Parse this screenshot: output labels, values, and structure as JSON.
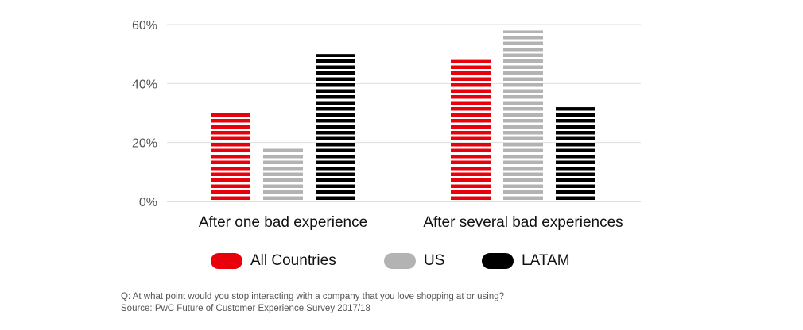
{
  "chart_data": {
    "type": "bar",
    "categories": [
      "After one bad experience",
      "After several bad experiences"
    ],
    "series": [
      {
        "name": "All Countries",
        "values": [
          30,
          48
        ],
        "color": "#e8000b"
      },
      {
        "name": "US",
        "values": [
          18,
          58
        ],
        "color": "#b3b3b3"
      },
      {
        "name": "LATAM",
        "values": [
          50,
          32
        ],
        "color": "#000000"
      }
    ],
    "yticks": [
      "0%",
      "20%",
      "40%",
      "60%"
    ],
    "ytick_values": [
      0,
      20,
      40,
      60
    ],
    "ylim": [
      0,
      60
    ],
    "grid": true,
    "legend_position": "bottom",
    "bar_pattern": "horizontal stripes"
  },
  "notes": {
    "question": "Q: At what point would you stop interacting with a company that you love shopping at or using?",
    "source": "Source: PwC Future of Customer Experience Survey 2017/18"
  }
}
